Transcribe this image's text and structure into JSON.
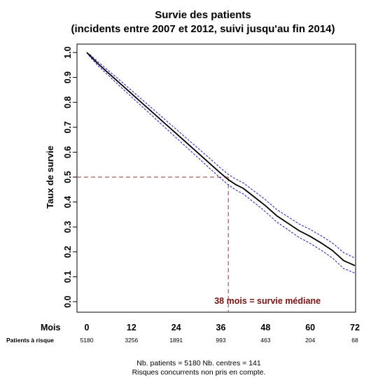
{
  "chart_data": {
    "type": "line",
    "title": "Survie des patients",
    "subtitle": "(incidents entre 2007 et 2012, suivi jusqu'au fin 2014)",
    "ylabel": "Taux de survie",
    "xlabel": "Mois",
    "xlim": [
      0,
      72
    ],
    "ylim": [
      0,
      1
    ],
    "x_ticks": [
      0,
      12,
      24,
      36,
      48,
      60,
      72
    ],
    "y_ticks": [
      0.0,
      0.1,
      0.2,
      0.3,
      0.4,
      0.5,
      0.6,
      0.7,
      0.8,
      0.9,
      1.0
    ],
    "y_tick_labels": [
      "0.0",
      "0.1",
      "0.2",
      "0.3",
      "0.4",
      "0.5",
      "0.6",
      "0.7",
      "0.8",
      "0.9",
      "1.0"
    ],
    "grid": false,
    "series": [
      {
        "role": "estimate",
        "color": "#000000",
        "style": "solid",
        "x": [
          0,
          1,
          3,
          6,
          9,
          12,
          15,
          18,
          21,
          24,
          27,
          30,
          33,
          36,
          38,
          40,
          42,
          45,
          48,
          51,
          54,
          57,
          60,
          63,
          66,
          69,
          72
        ],
        "y": [
          1.0,
          0.985,
          0.955,
          0.915,
          0.875,
          0.835,
          0.795,
          0.755,
          0.715,
          0.675,
          0.635,
          0.595,
          0.555,
          0.515,
          0.49,
          0.47,
          0.455,
          0.42,
          0.385,
          0.345,
          0.315,
          0.285,
          0.262,
          0.235,
          0.205,
          0.165,
          0.145
        ]
      },
      {
        "role": "upper-ci",
        "color": "#2b2bd6",
        "style": "dotted",
        "x": [
          0,
          1,
          3,
          6,
          9,
          12,
          15,
          18,
          21,
          24,
          27,
          30,
          33,
          36,
          38,
          40,
          42,
          45,
          48,
          51,
          54,
          57,
          60,
          63,
          66,
          69,
          72
        ],
        "y": [
          1.0,
          0.99,
          0.963,
          0.925,
          0.887,
          0.848,
          0.809,
          0.77,
          0.731,
          0.692,
          0.653,
          0.614,
          0.575,
          0.535,
          0.511,
          0.492,
          0.477,
          0.443,
          0.409,
          0.37,
          0.341,
          0.312,
          0.29,
          0.264,
          0.235,
          0.197,
          0.175
        ]
      },
      {
        "role": "lower-ci",
        "color": "#2b2bd6",
        "style": "dotted",
        "x": [
          0,
          1,
          3,
          6,
          9,
          12,
          15,
          18,
          21,
          24,
          27,
          30,
          33,
          36,
          38,
          40,
          42,
          45,
          48,
          51,
          54,
          57,
          60,
          63,
          66,
          69,
          72
        ],
        "y": [
          1.0,
          0.98,
          0.947,
          0.905,
          0.863,
          0.822,
          0.781,
          0.74,
          0.699,
          0.658,
          0.617,
          0.576,
          0.535,
          0.495,
          0.469,
          0.448,
          0.433,
          0.397,
          0.361,
          0.32,
          0.289,
          0.258,
          0.234,
          0.206,
          0.175,
          0.133,
          0.115
        ]
      }
    ],
    "median": {
      "x": 38,
      "y": 0.5,
      "label": "38 mois = survie médiane",
      "color": "#8b3a3a"
    },
    "risk_table": {
      "label": "Patients à risque",
      "x": [
        0,
        12,
        24,
        36,
        48,
        60,
        72
      ],
      "values": [
        "5180",
        "3256",
        "1891",
        "993",
        "463",
        "204",
        "68"
      ]
    },
    "footer": {
      "line1": "Nb. patients = 5180    Nb. centres = 141",
      "line2": "Risques concurrents non pris en compte."
    }
  }
}
